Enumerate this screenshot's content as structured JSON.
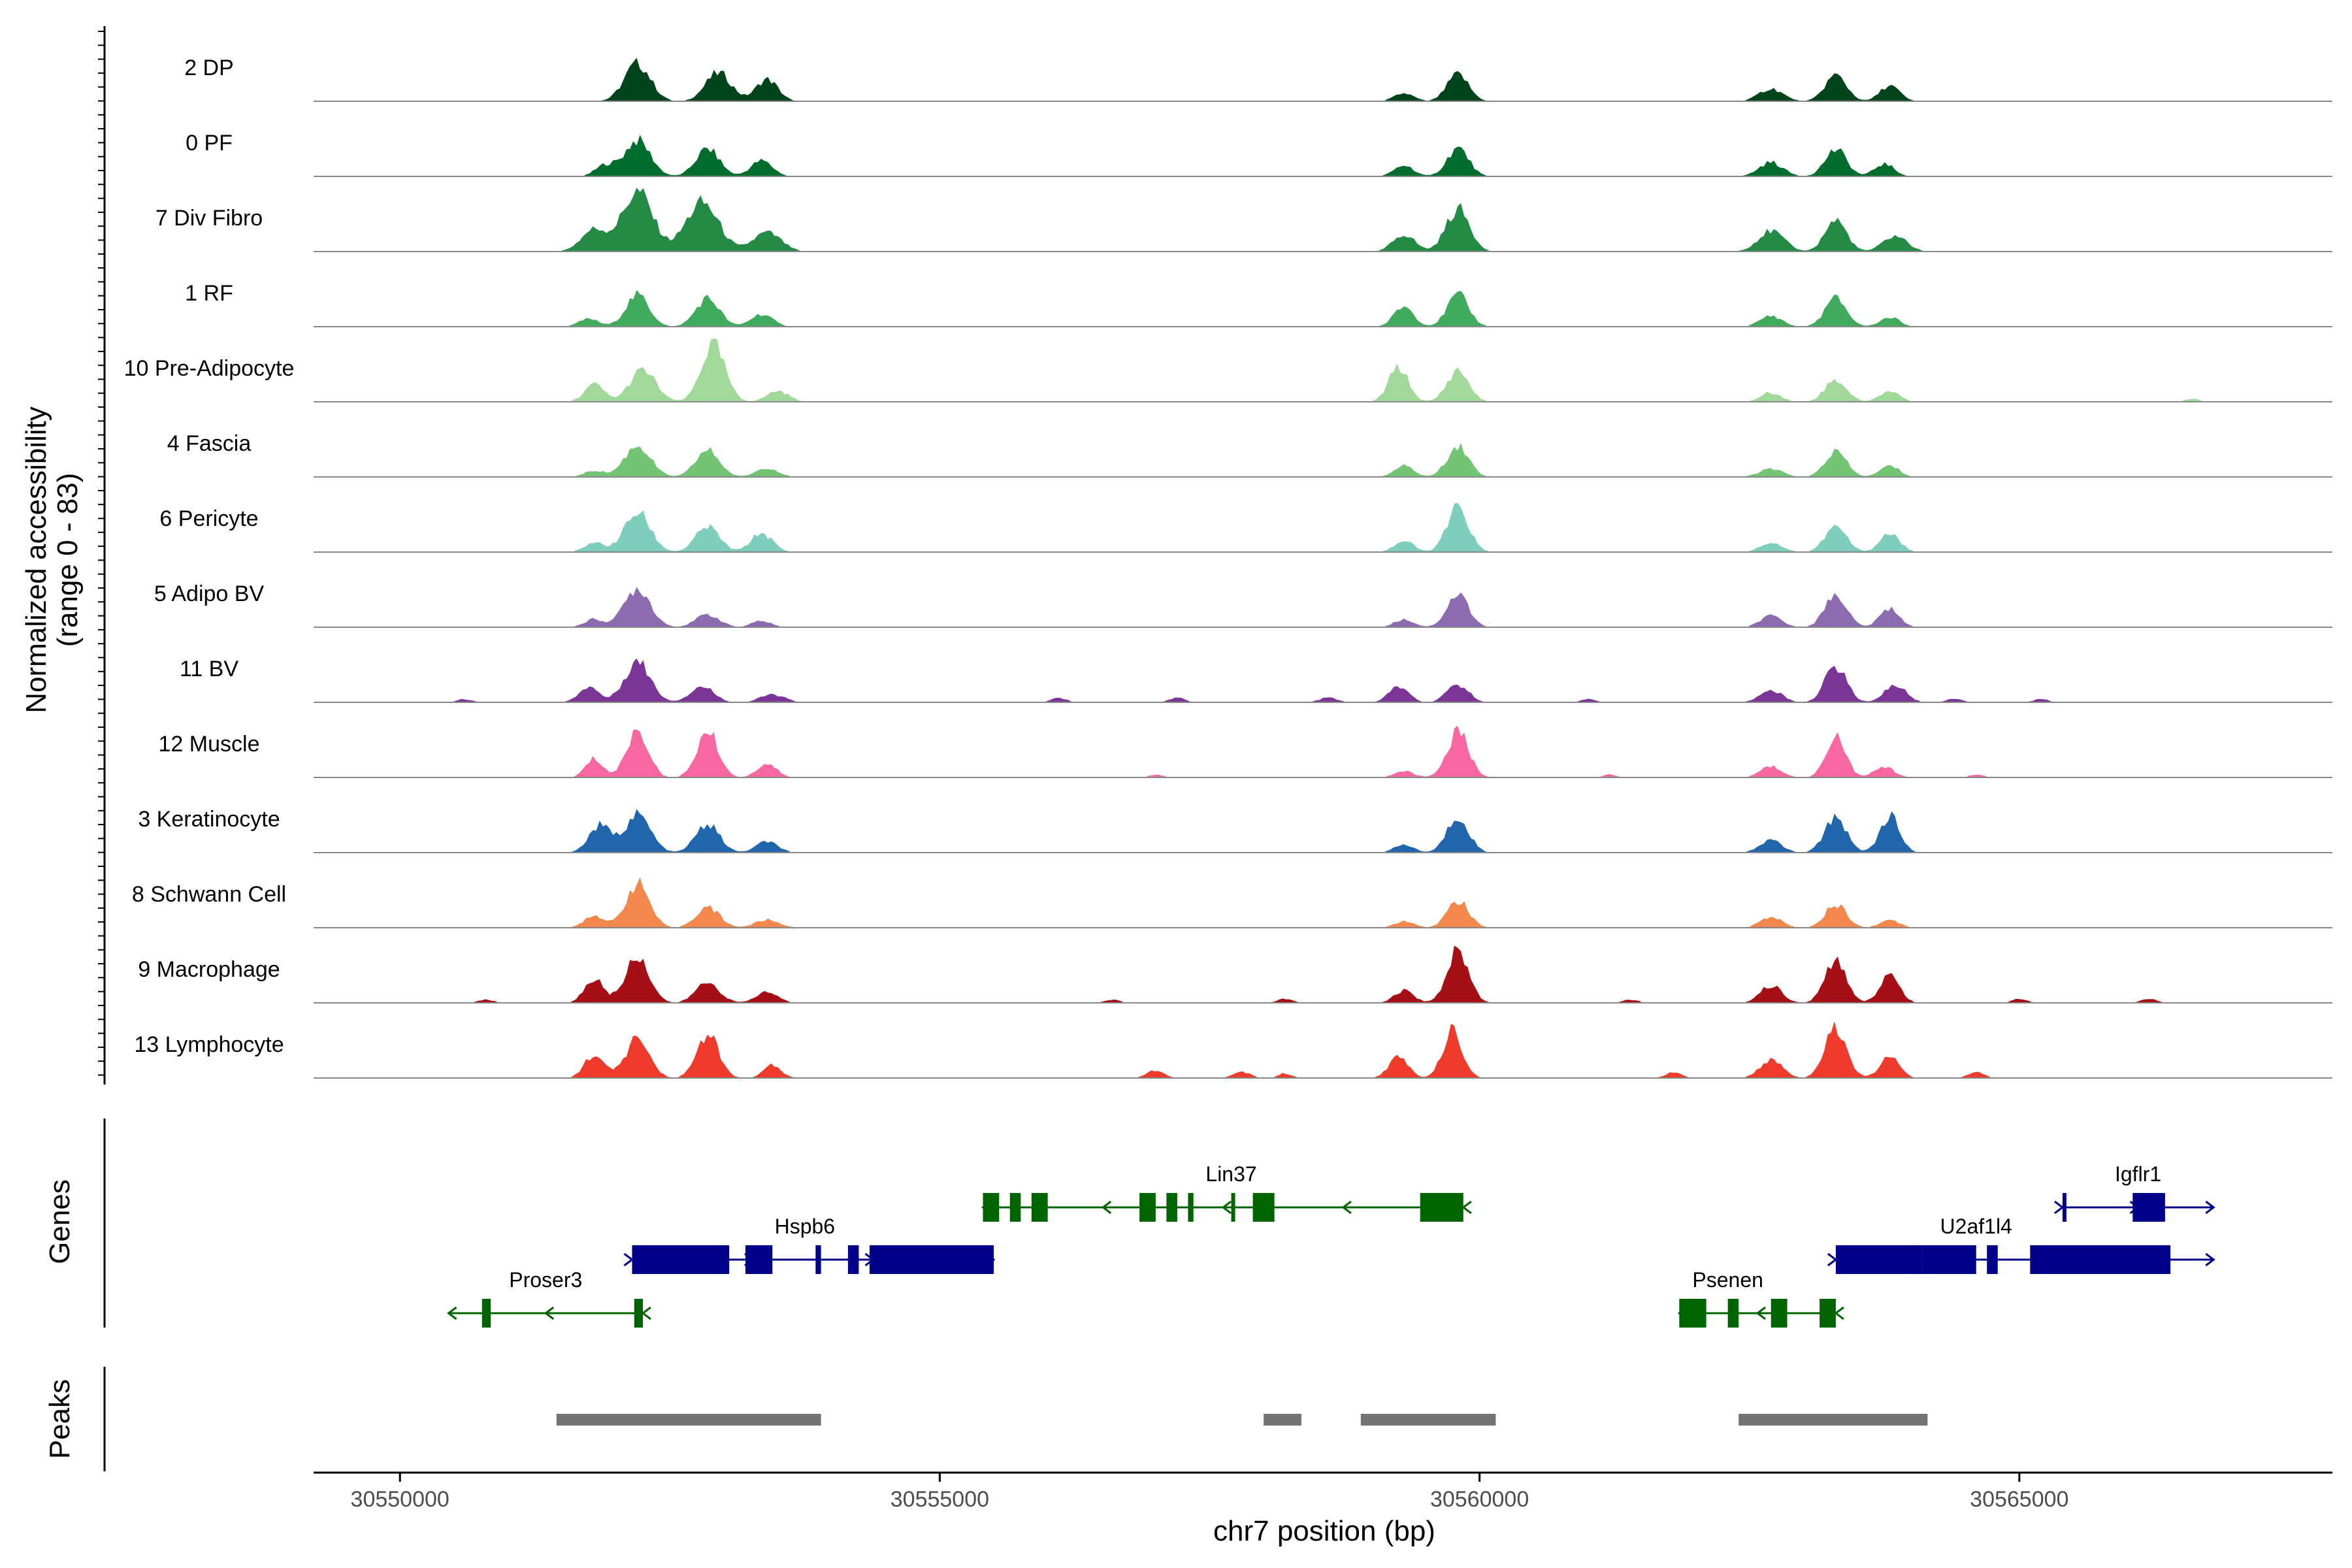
{
  "chart_data": {
    "type": "area",
    "title": "",
    "xlabel": "chr7 position (bp)",
    "ylabel": "Normalized accessibility",
    "ylabel_range": "(range 0 - 83)",
    "xlim": [
      30549200,
      30567900
    ],
    "ylim": [
      0,
      83
    ],
    "x_ticks": [
      30550000,
      30555000,
      30560000,
      30565000
    ],
    "x_tick_labels": [
      "30550000",
      "30555000",
      "30560000",
      "30565000"
    ],
    "track_labels": {
      "genes": "Genes",
      "peaks": "Peaks"
    },
    "coverage_tracks": [
      {
        "name": "2 DP",
        "color": "#00441B",
        "peaks": [
          [
            30552200,
            48,
            120
          ],
          [
            30552950,
            36,
            120
          ],
          [
            30553400,
            28,
            100
          ],
          [
            30559800,
            34,
            100
          ],
          [
            30559300,
            10,
            90
          ],
          [
            30563300,
            33,
            100
          ],
          [
            30562700,
            16,
            110
          ],
          [
            30563800,
            20,
            90
          ]
        ]
      },
      {
        "name": "0 PF",
        "color": "#006D2C",
        "peaks": [
          [
            30552200,
            46,
            120
          ],
          [
            30552850,
            35,
            110
          ],
          [
            30553350,
            20,
            100
          ],
          [
            30551900,
            14,
            90
          ],
          [
            30559800,
            36,
            100
          ],
          [
            30559300,
            14,
            90
          ],
          [
            30563300,
            34,
            100
          ],
          [
            30562700,
            18,
            110
          ],
          [
            30563750,
            16,
            90
          ]
        ]
      },
      {
        "name": "7 Div Fibro",
        "color": "#238B45",
        "peaks": [
          [
            30552200,
            76,
            140
          ],
          [
            30552800,
            62,
            150
          ],
          [
            30551800,
            28,
            120
          ],
          [
            30553400,
            24,
            130
          ],
          [
            30559800,
            54,
            110
          ],
          [
            30559300,
            22,
            100
          ],
          [
            30563300,
            40,
            100
          ],
          [
            30562700,
            26,
            120
          ],
          [
            30563850,
            20,
            110
          ]
        ]
      },
      {
        "name": "1 RF",
        "color": "#41AB5D",
        "peaks": [
          [
            30552200,
            40,
            110
          ],
          [
            30552850,
            36,
            110
          ],
          [
            30553350,
            16,
            100
          ],
          [
            30551750,
            10,
            90
          ],
          [
            30559800,
            40,
            100
          ],
          [
            30559300,
            26,
            90
          ],
          [
            30563300,
            36,
            100
          ],
          [
            30562700,
            14,
            100
          ],
          [
            30563800,
            12,
            90
          ]
        ]
      },
      {
        "name": "10 Pre-Adipocyte",
        "color": "#A1D99B",
        "peaks": [
          [
            30552250,
            40,
            120
          ],
          [
            30552900,
            72,
            110
          ],
          [
            30551800,
            22,
            90
          ],
          [
            30553500,
            14,
            100
          ],
          [
            30559800,
            40,
            100
          ],
          [
            30559250,
            44,
            90
          ],
          [
            30563300,
            28,
            100
          ],
          [
            30562700,
            12,
            90
          ],
          [
            30563800,
            14,
            90
          ],
          [
            30566600,
            4,
            60
          ]
        ]
      },
      {
        "name": "4 Fascia",
        "color": "#74C476",
        "peaks": [
          [
            30552200,
            40,
            120
          ],
          [
            30552850,
            34,
            110
          ],
          [
            30553400,
            12,
            100
          ],
          [
            30551800,
            8,
            90
          ],
          [
            30559800,
            40,
            100
          ],
          [
            30559300,
            14,
            90
          ],
          [
            30563300,
            32,
            100
          ],
          [
            30562700,
            10,
            110
          ],
          [
            30563800,
            14,
            90
          ]
        ]
      },
      {
        "name": "6 Pericyte",
        "color": "#7FCDBB",
        "peaks": [
          [
            30552200,
            50,
            120
          ],
          [
            30552850,
            32,
            110
          ],
          [
            30553350,
            24,
            100
          ],
          [
            30551800,
            12,
            90
          ],
          [
            30559800,
            56,
            100
          ],
          [
            30559300,
            14,
            90
          ],
          [
            30563300,
            32,
            100
          ],
          [
            30562700,
            12,
            100
          ],
          [
            30563800,
            24,
            90
          ]
        ]
      },
      {
        "name": "5 Adipo BV",
        "color": "#8C6BB1",
        "peaks": [
          [
            30552200,
            50,
            120
          ],
          [
            30552850,
            16,
            110
          ],
          [
            30551800,
            10,
            90
          ],
          [
            30553350,
            8,
            90
          ],
          [
            30559800,
            42,
            100
          ],
          [
            30559300,
            10,
            90
          ],
          [
            30563300,
            42,
            100
          ],
          [
            30562700,
            14,
            100
          ],
          [
            30563800,
            24,
            90
          ]
        ]
      },
      {
        "name": "11 BV",
        "color": "#7A3597",
        "peaks": [
          [
            30552200,
            52,
            120
          ],
          [
            30552800,
            20,
            110
          ],
          [
            30551750,
            20,
            90
          ],
          [
            30553450,
            10,
            110
          ],
          [
            30559800,
            22,
            100
          ],
          [
            30559250,
            20,
            90
          ],
          [
            30563300,
            46,
            100
          ],
          [
            30562700,
            16,
            100
          ],
          [
            30563850,
            22,
            100
          ],
          [
            30556100,
            6,
            70
          ],
          [
            30557200,
            6,
            70
          ],
          [
            30558600,
            6,
            80
          ],
          [
            30561000,
            4,
            70
          ],
          [
            30564400,
            5,
            70
          ],
          [
            30565200,
            4,
            70
          ],
          [
            30550600,
            4,
            70
          ]
        ]
      },
      {
        "name": "12 Muscle",
        "color": "#F768A1",
        "peaks": [
          [
            30552200,
            60,
            100
          ],
          [
            30552850,
            58,
            100
          ],
          [
            30551800,
            24,
            80
          ],
          [
            30553400,
            18,
            90
          ],
          [
            30559800,
            58,
            100
          ],
          [
            30559300,
            8,
            90
          ],
          [
            30563300,
            54,
            90
          ],
          [
            30562700,
            14,
            100
          ],
          [
            30563750,
            14,
            90
          ],
          [
            30557000,
            4,
            60
          ],
          [
            30561200,
            4,
            60
          ],
          [
            30564600,
            4,
            60
          ]
        ]
      },
      {
        "name": "3 Keratinocyte",
        "color": "#2166AC",
        "peaks": [
          [
            30552200,
            48,
            120
          ],
          [
            30552850,
            36,
            110
          ],
          [
            30551850,
            34,
            100
          ],
          [
            30553400,
            14,
            100
          ],
          [
            30559800,
            46,
            100
          ],
          [
            30559300,
            10,
            90
          ],
          [
            30563300,
            46,
            100
          ],
          [
            30562700,
            16,
            100
          ],
          [
            30563800,
            46,
            90
          ]
        ]
      },
      {
        "name": "8 Schwann Cell",
        "color": "#F4874B",
        "peaks": [
          [
            30552200,
            56,
            110
          ],
          [
            30552850,
            26,
            110
          ],
          [
            30551800,
            16,
            90
          ],
          [
            30553400,
            10,
            110
          ],
          [
            30559800,
            34,
            100
          ],
          [
            30559300,
            8,
            90
          ],
          [
            30563300,
            30,
            100
          ],
          [
            30562700,
            14,
            100
          ],
          [
            30563800,
            10,
            90
          ]
        ]
      },
      {
        "name": "9 Macrophage",
        "color": "#A50F15",
        "peaks": [
          [
            30552200,
            60,
            110
          ],
          [
            30552850,
            26,
            110
          ],
          [
            30551800,
            30,
            90
          ],
          [
            30553400,
            14,
            100
          ],
          [
            30559800,
            66,
            100
          ],
          [
            30559300,
            16,
            90
          ],
          [
            30563300,
            52,
            100
          ],
          [
            30562700,
            22,
            100
          ],
          [
            30563800,
            36,
            90
          ],
          [
            30556600,
            4,
            70
          ],
          [
            30558200,
            5,
            70
          ],
          [
            30561400,
            4,
            70
          ],
          [
            30565000,
            5,
            70
          ],
          [
            30566200,
            5,
            70
          ],
          [
            30550800,
            4,
            70
          ]
        ]
      },
      {
        "name": "13 Lymphocyte",
        "color": "#EF3B2C",
        "peaks": [
          [
            30552200,
            50,
            110
          ],
          [
            30552850,
            56,
            100
          ],
          [
            30551800,
            30,
            90
          ],
          [
            30553450,
            16,
            80
          ],
          [
            30559750,
            60,
            90
          ],
          [
            30559250,
            26,
            90
          ],
          [
            30563300,
            62,
            100
          ],
          [
            30562700,
            24,
            100
          ],
          [
            30563800,
            26,
            90
          ],
          [
            30557000,
            10,
            80
          ],
          [
            30557800,
            8,
            80
          ],
          [
            30558200,
            6,
            60
          ],
          [
            30561800,
            8,
            70
          ],
          [
            30564600,
            8,
            70
          ]
        ]
      }
    ],
    "genes": [
      {
        "name": "Proser3",
        "strand": "-",
        "row": 3,
        "color": "#006400",
        "start": 30550450,
        "end": 30552250,
        "label_x": 30551350,
        "exons": [
          [
            30550760,
            30550840
          ],
          [
            30552170,
            30552250
          ]
        ]
      },
      {
        "name": "Hspb6",
        "strand": "+",
        "row": 2,
        "color": "#00008B",
        "start": 30552150,
        "end": 30555500,
        "label_x": 30553750,
        "exons": [
          [
            30552150,
            30553050
          ],
          [
            30553200,
            30553450
          ],
          [
            30553850,
            30553900
          ],
          [
            30554150,
            30554250
          ],
          [
            30554350,
            30555500
          ]
        ]
      },
      {
        "name": "Lin37",
        "strand": "-",
        "row": 1,
        "color": "#006400",
        "start": 30555400,
        "end": 30559850,
        "label_x": 30557700,
        "exons": [
          [
            30555400,
            30555550
          ],
          [
            30555650,
            30555750
          ],
          [
            30555850,
            30556000
          ],
          [
            30556850,
            30557000
          ],
          [
            30557100,
            30557200
          ],
          [
            30557300,
            30557350
          ],
          [
            30557700,
            30557730
          ],
          [
            30557900,
            30558100
          ],
          [
            30559450,
            30559850
          ]
        ]
      },
      {
        "name": "Psenen",
        "strand": "-",
        "row": 3,
        "color": "#006400",
        "start": 30561850,
        "end": 30563300,
        "label_x": 30562300,
        "exons": [
          [
            30561850,
            30562100
          ],
          [
            30562300,
            30562400
          ],
          [
            30562700,
            30562850
          ],
          [
            30563150,
            30563300
          ]
        ]
      },
      {
        "name": "U2af1l4",
        "strand": "+",
        "row": 2,
        "color": "#00008B",
        "start": 30563300,
        "end": 30566800,
        "label_x": 30564600,
        "exons": [
          [
            30563300,
            30564100
          ],
          [
            30564100,
            30564600
          ],
          [
            30564700,
            30564800
          ],
          [
            30565100,
            30566400
          ]
        ]
      },
      {
        "name": "Igflr1",
        "strand": "+",
        "row": 1,
        "color": "#00008B",
        "start": 30565400,
        "end": 30566800,
        "label_x": 30566100,
        "exons": [
          [
            30565400,
            30565430
          ],
          [
            30566050,
            30566350
          ]
        ]
      }
    ],
    "peaks_track": [
      [
        30551450,
        30553900
      ],
      [
        30558000,
        30558350
      ],
      [
        30558900,
        30560150
      ],
      [
        30562400,
        30564150
      ]
    ],
    "colors": {
      "axis": "#000000",
      "baseline": "#888888",
      "peak_bar": "#737373",
      "tick_label": "#4D4D4D"
    }
  }
}
